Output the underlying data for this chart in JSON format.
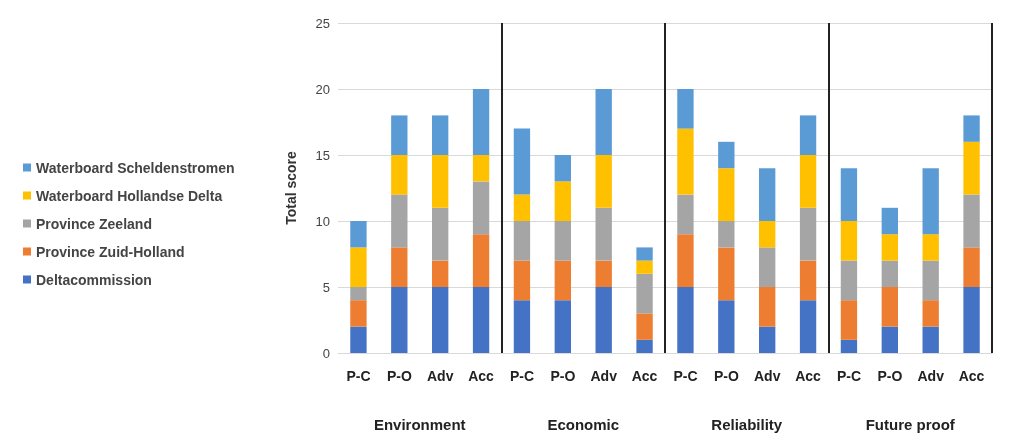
{
  "chart_data": {
    "type": "bar",
    "stacked": true,
    "ylabel": "Total score",
    "categories": [
      "P-C",
      "P-O",
      "Adv",
      "Acc",
      "P-C",
      "P-O",
      "Adv",
      "Acc",
      "P-C",
      "P-O",
      "Adv",
      "Acc",
      "P-C",
      "P-O",
      "Adv",
      "Acc"
    ],
    "annotations": [
      "Environment",
      "Economic",
      "Reliability",
      "Future proof"
    ],
    "series": [
      {
        "name": "Deltacommission",
        "color": "#4472c4",
        "values": [
          2,
          5,
          5,
          5,
          4,
          4,
          5,
          1,
          5,
          4,
          2,
          4,
          1,
          2,
          2,
          5
        ]
      },
      {
        "name": "Province Zuid-Holland",
        "color": "#ed7d31",
        "values": [
          2,
          3,
          2,
          4,
          3,
          3,
          2,
          2,
          4,
          4,
          3,
          3,
          3,
          3,
          2,
          3
        ]
      },
      {
        "name": "Province Zeeland",
        "color": "#a5a5a5",
        "values": [
          1,
          4,
          4,
          4,
          3,
          3,
          4,
          3,
          3,
          2,
          3,
          4,
          3,
          2,
          3,
          4
        ]
      },
      {
        "name": "Waterboard Hollandse Delta",
        "color": "#ffc000",
        "values": [
          3,
          3,
          4,
          2,
          2,
          3,
          4,
          1,
          5,
          4,
          2,
          4,
          3,
          2,
          2,
          4
        ]
      },
      {
        "name": "Waterboard Scheldenstromen",
        "color": "#5b9bd5",
        "values": [
          2,
          3,
          3,
          5,
          5,
          2,
          5,
          1,
          3,
          2,
          4,
          3,
          4,
          2,
          5,
          2
        ]
      }
    ],
    "ylim": [
      0,
      25
    ],
    "yticks": [
      0,
      5,
      10,
      15,
      20,
      25
    ],
    "grid": "y",
    "legend": "left"
  }
}
